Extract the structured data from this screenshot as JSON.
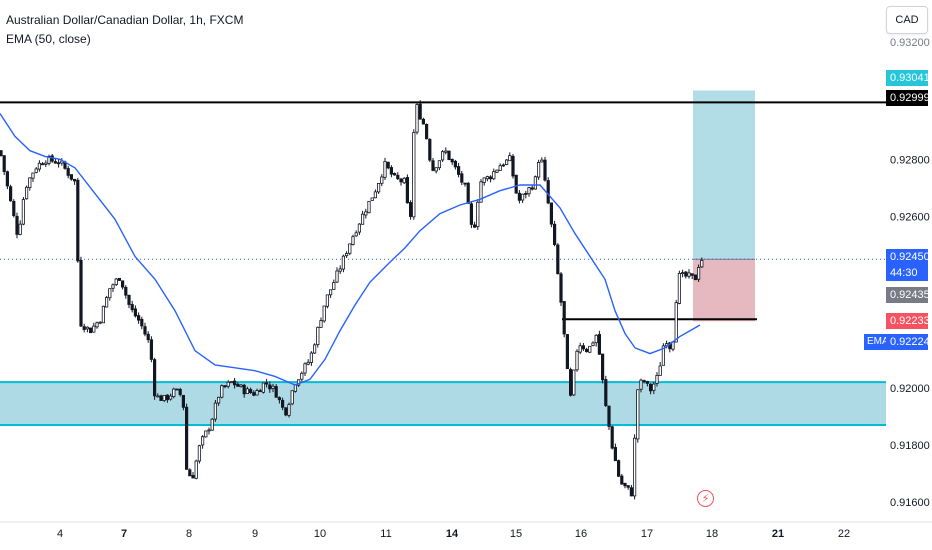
{
  "header": {
    "title": "Australian Dollar/Canadian Dollar, 1h, FXCM",
    "indicator": "EMA (50, close)"
  },
  "currency_button": "CAD",
  "colors": {
    "up_candle": "#131722",
    "down_candle": "#131722",
    "ema": "#2962ff",
    "support_zone": "#9fd4df",
    "support_zone_border": "#00bcd4",
    "resistance_line": "#000000",
    "target_zone": "#b2dce6",
    "stop_zone": "#e6b8bf",
    "last_price_bg": "#2962ff",
    "prev_close_bg": "#787b86",
    "target_label_bg": "#26c6da",
    "stop_label_bg": "#f7525f"
  },
  "price_labels": {
    "top_cut": "0.93200",
    "target": "0.93041",
    "resistance": "0.92999",
    "last_price": "0.92450",
    "countdown": "44:30",
    "prev_close": "0.92435",
    "stop": "0.92233",
    "ema_tag": "EMA",
    "ema_value": "0.92224"
  },
  "icons": {
    "bolt": "lightning-icon"
  },
  "chart_data": {
    "type": "candlestick",
    "symbol": "AUDCAD",
    "title": "Australian Dollar/Canadian Dollar, 1h, FXCM",
    "ylim": [
      0.9157,
      0.9322
    ],
    "y_ticks": [
      "0.92800",
      "0.92600",
      "0.92000",
      "0.91800",
      "0.91600"
    ],
    "x_ticks": [
      "4",
      "7",
      "8",
      "9",
      "10",
      "11",
      "14",
      "15",
      "16",
      "17",
      "18",
      "21",
      "22"
    ],
    "path_anchors": [
      [
        0,
        0.9283
      ],
      [
        10,
        0.9266
      ],
      [
        18,
        0.9253
      ],
      [
        25,
        0.927
      ],
      [
        35,
        0.9277
      ],
      [
        45,
        0.928
      ],
      [
        60,
        0.9279
      ],
      [
        75,
        0.9272
      ],
      [
        80,
        0.9223
      ],
      [
        90,
        0.922
      ],
      [
        100,
        0.9224
      ],
      [
        110,
        0.9235
      ],
      [
        120,
        0.9239
      ],
      [
        130,
        0.9228
      ],
      [
        140,
        0.9223
      ],
      [
        150,
        0.9215
      ],
      [
        155,
        0.9197
      ],
      [
        165,
        0.9196
      ],
      [
        175,
        0.9199
      ],
      [
        183,
        0.9197
      ],
      [
        186,
        0.9172
      ],
      [
        192,
        0.9168
      ],
      [
        200,
        0.918
      ],
      [
        210,
        0.9187
      ],
      [
        220,
        0.9199
      ],
      [
        232,
        0.9202
      ],
      [
        245,
        0.9199
      ],
      [
        255,
        0.9198
      ],
      [
        265,
        0.9202
      ],
      [
        275,
        0.9199
      ],
      [
        285,
        0.9191
      ],
      [
        295,
        0.9202
      ],
      [
        310,
        0.921
      ],
      [
        325,
        0.923
      ],
      [
        340,
        0.9242
      ],
      [
        350,
        0.9251
      ],
      [
        362,
        0.926
      ],
      [
        375,
        0.9269
      ],
      [
        385,
        0.9278
      ],
      [
        395,
        0.9273
      ],
      [
        405,
        0.9272
      ],
      [
        410,
        0.9255
      ],
      [
        415,
        0.93
      ],
      [
        425,
        0.9291
      ],
      [
        432,
        0.9276
      ],
      [
        445,
        0.9283
      ],
      [
        455,
        0.9277
      ],
      [
        465,
        0.927
      ],
      [
        473,
        0.9253
      ],
      [
        480,
        0.9272
      ],
      [
        490,
        0.9274
      ],
      [
        500,
        0.9278
      ],
      [
        510,
        0.928
      ],
      [
        518,
        0.9265
      ],
      [
        525,
        0.9268
      ],
      [
        535,
        0.9272
      ],
      [
        540,
        0.9283
      ],
      [
        548,
        0.9265
      ],
      [
        555,
        0.9248
      ],
      [
        562,
        0.9227
      ],
      [
        570,
        0.9195
      ],
      [
        578,
        0.9216
      ],
      [
        588,
        0.9213
      ],
      [
        597,
        0.9219
      ],
      [
        605,
        0.9195
      ],
      [
        612,
        0.918
      ],
      [
        620,
        0.9167
      ],
      [
        632,
        0.9163
      ],
      [
        637,
        0.9199
      ],
      [
        643,
        0.9203
      ],
      [
        650,
        0.9199
      ],
      [
        658,
        0.9204
      ],
      [
        665,
        0.9218
      ],
      [
        672,
        0.9213
      ],
      [
        678,
        0.9239
      ],
      [
        688,
        0.9239
      ],
      [
        695,
        0.9238
      ],
      [
        700,
        0.9245
      ]
    ],
    "ema_50": [
      [
        0,
        0.9296
      ],
      [
        15,
        0.9288
      ],
      [
        30,
        0.9283
      ],
      [
        45,
        0.9281
      ],
      [
        60,
        0.928
      ],
      [
        75,
        0.9277
      ],
      [
        95,
        0.9268
      ],
      [
        115,
        0.9259
      ],
      [
        135,
        0.9246
      ],
      [
        155,
        0.9238
      ],
      [
        175,
        0.9227
      ],
      [
        195,
        0.9213
      ],
      [
        215,
        0.9208
      ],
      [
        235,
        0.9207
      ],
      [
        255,
        0.9206
      ],
      [
        275,
        0.9204
      ],
      [
        295,
        0.9201
      ],
      [
        310,
        0.9203
      ],
      [
        325,
        0.921
      ],
      [
        340,
        0.922
      ],
      [
        355,
        0.9229
      ],
      [
        370,
        0.9237
      ],
      [
        390,
        0.9244
      ],
      [
        405,
        0.9249
      ],
      [
        420,
        0.9255
      ],
      [
        440,
        0.9261
      ],
      [
        460,
        0.9264
      ],
      [
        480,
        0.9266
      ],
      [
        500,
        0.9269
      ],
      [
        520,
        0.9271
      ],
      [
        540,
        0.9271
      ],
      [
        560,
        0.9263
      ],
      [
        575,
        0.9254
      ],
      [
        590,
        0.9246
      ],
      [
        605,
        0.9238
      ],
      [
        615,
        0.9227
      ],
      [
        625,
        0.9219
      ],
      [
        635,
        0.9214
      ],
      [
        650,
        0.9212
      ],
      [
        665,
        0.9214
      ],
      [
        680,
        0.9218
      ],
      [
        690,
        0.922
      ],
      [
        700,
        0.9222
      ]
    ],
    "support_zone": [
      0.9187,
      0.9202
    ],
    "resistance_level": 0.92999,
    "breakout_level": 0.9224,
    "position": {
      "entry": 0.9245,
      "target": 0.93041,
      "stop": 0.92233
    }
  }
}
